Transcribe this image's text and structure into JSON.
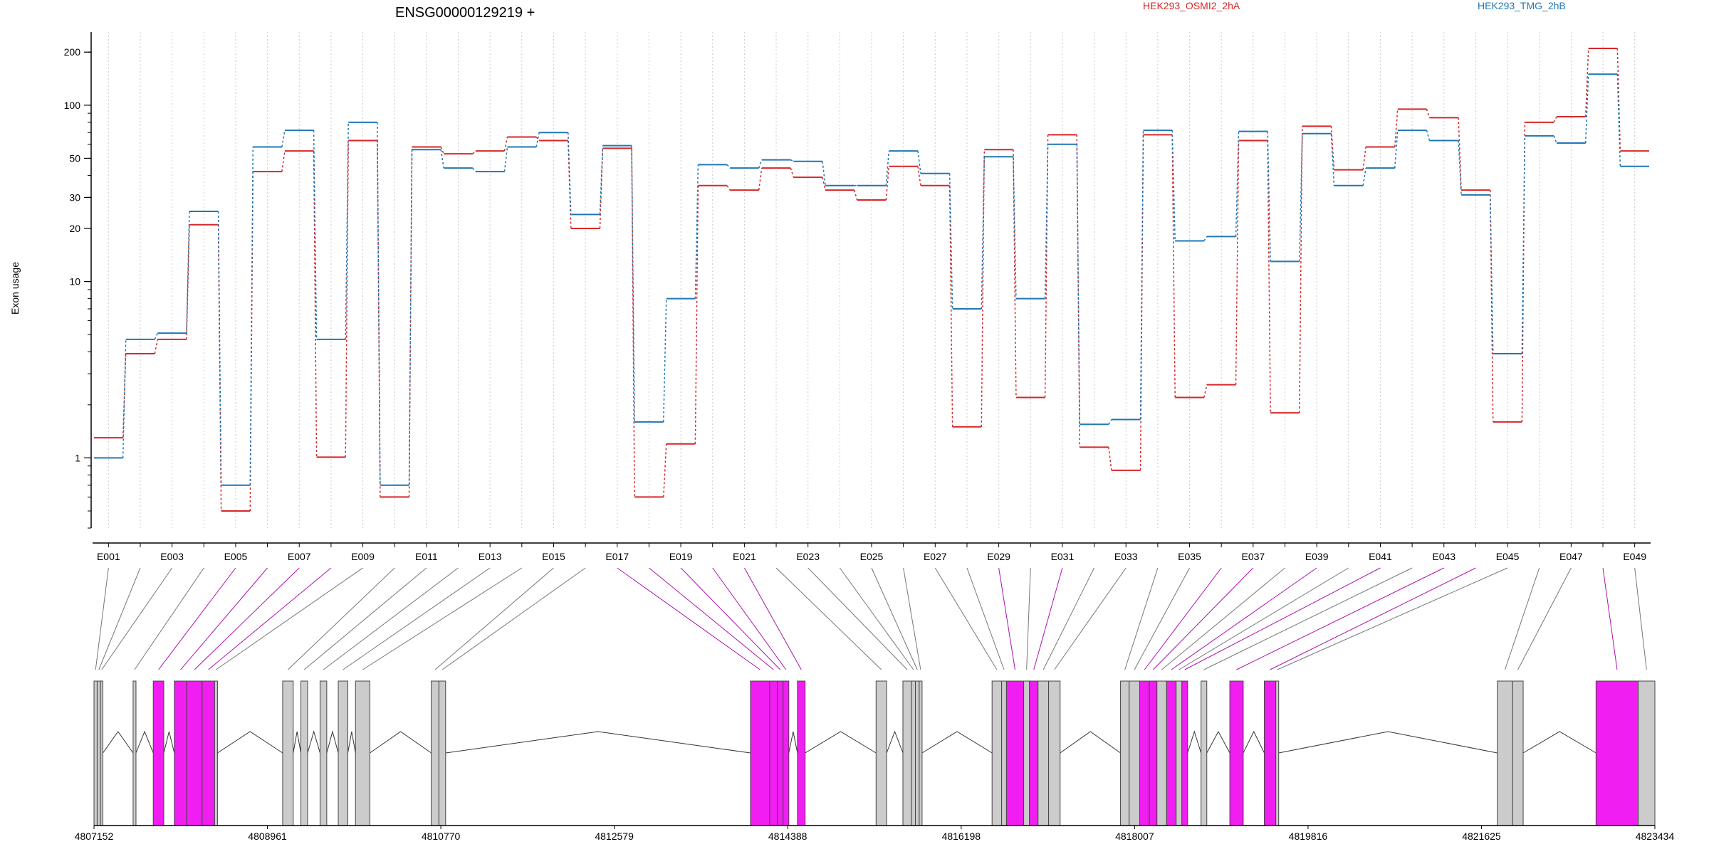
{
  "title": "ENSG00000129219 +",
  "ylabel": "Exon usage",
  "legend": [
    {
      "name": "HEK293_OSMI2_2hA",
      "color": "#d62728"
    },
    {
      "name": "HEK293_TMG_2hB",
      "color": "#1f77b4"
    }
  ],
  "colors": {
    "significant_exon": "#f01ef0",
    "normal_exon": "#cccccc",
    "exon_border": "#444444",
    "grid": "#c8c8dc",
    "axis": "#000000"
  },
  "chart_data": {
    "type": "line",
    "title": "ENSG00000129219 +",
    "ylabel": "Exon usage",
    "yscale": "log",
    "ylim": [
      0.4,
      260
    ],
    "yticks": [
      1,
      10,
      20,
      30,
      50,
      100,
      200
    ],
    "yticklabels": [
      "1",
      "10",
      "20",
      "30",
      "50",
      "100",
      "200"
    ],
    "legend_placement": "top-right",
    "x_categories": [
      "E001",
      "E002",
      "E003",
      "E004",
      "E005",
      "E006",
      "E007",
      "E008",
      "E009",
      "E010",
      "E011",
      "E012",
      "E013",
      "E014",
      "E015",
      "E016",
      "E017",
      "E018",
      "E019",
      "E020",
      "E021",
      "E022",
      "E023",
      "E024",
      "E025",
      "E026",
      "E027",
      "E028",
      "E029",
      "E030",
      "E031",
      "E032",
      "E033",
      "E034",
      "E035",
      "E036",
      "E037",
      "E038",
      "E039",
      "E040",
      "E041",
      "E042",
      "E043",
      "E044",
      "E045",
      "E046",
      "E047",
      "E048",
      "E049"
    ],
    "x_ticklabels_shown": [
      "E001",
      "E003",
      "E005",
      "E007",
      "E009",
      "E011",
      "E013",
      "E015",
      "E017",
      "E019",
      "E021",
      "E023",
      "E025",
      "E027",
      "E029",
      "E031",
      "E033",
      "E035",
      "E037",
      "E039",
      "E041",
      "E043",
      "E045",
      "E047",
      "E049"
    ],
    "series": [
      {
        "name": "HEK293_OSMI2_2hA",
        "color": "#d62728",
        "values": [
          1.3,
          3.9,
          4.7,
          21,
          0.5,
          42,
          55,
          1.01,
          63,
          0.6,
          58,
          53,
          55,
          66,
          63,
          20,
          57,
          0.6,
          1.2,
          35,
          33,
          44,
          39,
          33,
          29,
          45,
          35,
          1.5,
          56,
          2.2,
          68,
          1.15,
          0.85,
          68,
          2.2,
          2.6,
          63,
          1.8,
          76,
          43,
          58,
          95,
          85,
          33,
          1.6,
          80,
          86,
          210,
          55
        ]
      },
      {
        "name": "HEK293_TMG_2hB",
        "color": "#1f77b4",
        "values": [
          1.0,
          4.7,
          5.1,
          25,
          0.7,
          58,
          72,
          4.7,
          80,
          0.7,
          56,
          44,
          42,
          58,
          70,
          24,
          59,
          1.6,
          8,
          46,
          44,
          49,
          48,
          35,
          35,
          55,
          41,
          7,
          51,
          8,
          60,
          1.55,
          1.65,
          72,
          17,
          18,
          71,
          13,
          69,
          35,
          44,
          72,
          63,
          31,
          3.9,
          67,
          61,
          150,
          45
        ]
      }
    ]
  },
  "gene_model": {
    "coordinates": [
      "4807152",
      "4808961",
      "4810770",
      "4812579",
      "4814388",
      "4816198",
      "4818007",
      "4819816",
      "4821625",
      "4823434"
    ],
    "coord_values": [
      4807152,
      4808961,
      4810770,
      4812579,
      4814388,
      4816198,
      4818007,
      4819816,
      4821625,
      4823434
    ],
    "exons": [
      {
        "id": "E001",
        "start": 4807152,
        "end": 4807185,
        "significant": false
      },
      {
        "id": "E002",
        "start": 4807185,
        "end": 4807220,
        "significant": false
      },
      {
        "id": "E003",
        "start": 4807220,
        "end": 4807245,
        "significant": false
      },
      {
        "id": "E004",
        "start": 4807560,
        "end": 4807590,
        "significant": false
      },
      {
        "id": "E005",
        "start": 4807770,
        "end": 4807880,
        "significant": true
      },
      {
        "id": "E006",
        "start": 4807990,
        "end": 4808120,
        "significant": true
      },
      {
        "id": "E007",
        "start": 4808120,
        "end": 4808280,
        "significant": true
      },
      {
        "id": "E008",
        "start": 4808280,
        "end": 4808410,
        "significant": true
      },
      {
        "id": "E009",
        "start": 4808410,
        "end": 4808440,
        "significant": false
      },
      {
        "id": "E010",
        "start": 4809120,
        "end": 4809230,
        "significant": false
      },
      {
        "id": "E011",
        "start": 4809310,
        "end": 4809380,
        "significant": false
      },
      {
        "id": "E012",
        "start": 4809510,
        "end": 4809580,
        "significant": false
      },
      {
        "id": "E013",
        "start": 4809700,
        "end": 4809800,
        "significant": false
      },
      {
        "id": "E014",
        "start": 4809880,
        "end": 4810030,
        "significant": false
      },
      {
        "id": "E015",
        "start": 4810670,
        "end": 4810750,
        "significant": false
      },
      {
        "id": "E016",
        "start": 4810750,
        "end": 4810820,
        "significant": false
      },
      {
        "id": "E017",
        "start": 4814000,
        "end": 4814200,
        "significant": true
      },
      {
        "id": "E018",
        "start": 4814200,
        "end": 4814280,
        "significant": true
      },
      {
        "id": "E019",
        "start": 4814280,
        "end": 4814340,
        "significant": true
      },
      {
        "id": "E020",
        "start": 4814340,
        "end": 4814400,
        "significant": true
      },
      {
        "id": "E021",
        "start": 4814490,
        "end": 4814570,
        "significant": true
      },
      {
        "id": "E022",
        "start": 4815310,
        "end": 4815420,
        "significant": false
      },
      {
        "id": "E023",
        "start": 4815590,
        "end": 4815680,
        "significant": false
      },
      {
        "id": "E024",
        "start": 4815680,
        "end": 4815720,
        "significant": false
      },
      {
        "id": "E025",
        "start": 4815720,
        "end": 4815760,
        "significant": false
      },
      {
        "id": "E026",
        "start": 4815760,
        "end": 4815790,
        "significant": false
      },
      {
        "id": "E027",
        "start": 4816520,
        "end": 4816620,
        "significant": false
      },
      {
        "id": "E028",
        "start": 4816620,
        "end": 4816670,
        "significant": false
      },
      {
        "id": "E029",
        "start": 4816670,
        "end": 4816850,
        "significant": true
      },
      {
        "id": "E030",
        "start": 4816850,
        "end": 4816910,
        "significant": false
      },
      {
        "id": "E031",
        "start": 4816910,
        "end": 4817000,
        "significant": true
      },
      {
        "id": "E032",
        "start": 4817000,
        "end": 4817110,
        "significant": false
      },
      {
        "id": "E033",
        "start": 4817110,
        "end": 4817230,
        "significant": false
      },
      {
        "id": "E034",
        "start": 4817860,
        "end": 4817950,
        "significant": false
      },
      {
        "id": "E035",
        "start": 4817950,
        "end": 4818060,
        "significant": false
      },
      {
        "id": "E036",
        "start": 4818060,
        "end": 4818160,
        "significant": true
      },
      {
        "id": "E037",
        "start": 4818160,
        "end": 4818240,
        "significant": true
      },
      {
        "id": "E038",
        "start": 4818240,
        "end": 4818340,
        "significant": false
      },
      {
        "id": "E039",
        "start": 4818340,
        "end": 4818440,
        "significant": true
      },
      {
        "id": "E040",
        "start": 4818440,
        "end": 4818500,
        "significant": false
      },
      {
        "id": "E041",
        "start": 4818500,
        "end": 4818560,
        "significant": true
      },
      {
        "id": "E042",
        "start": 4818700,
        "end": 4818760,
        "significant": false
      },
      {
        "id": "E043",
        "start": 4819000,
        "end": 4819140,
        "significant": true
      },
      {
        "id": "E044",
        "start": 4819360,
        "end": 4819480,
        "significant": true
      },
      {
        "id": "E045",
        "start": 4819480,
        "end": 4819510,
        "significant": false
      },
      {
        "id": "E046",
        "start": 4821790,
        "end": 4821950,
        "significant": false
      },
      {
        "id": "E047",
        "start": 4821950,
        "end": 4822060,
        "significant": false
      },
      {
        "id": "E048",
        "start": 4822820,
        "end": 4823260,
        "significant": true
      },
      {
        "id": "E049",
        "start": 4823260,
        "end": 4823434,
        "significant": false
      }
    ]
  }
}
